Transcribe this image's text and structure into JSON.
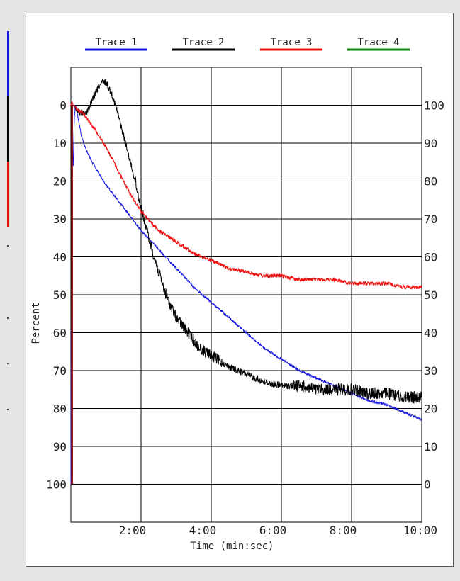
{
  "chart_data": {
    "type": "line",
    "title": "",
    "xlabel": "Time (min:sec)",
    "ylabel": "Percent",
    "xlim": [
      0,
      600
    ],
    "ylim_left": [
      110,
      -10
    ],
    "ylim_right": [
      -10,
      110
    ],
    "x_ticks": [
      120,
      240,
      360,
      480,
      600
    ],
    "x_tick_labels": [
      "2:00",
      "4:00",
      "6:00",
      "8:00",
      "10:00"
    ],
    "y_ticks_left": [
      0,
      10,
      20,
      30,
      40,
      50,
      60,
      70,
      80,
      90,
      100
    ],
    "y_tick_labels_left": [
      "0",
      "10",
      "20",
      "30",
      "40",
      "50",
      "60",
      "70",
      "80",
      "90",
      "100"
    ],
    "y_ticks_right": [
      100,
      90,
      80,
      70,
      60,
      50,
      40,
      30,
      20,
      10,
      0
    ],
    "y_tick_labels_right": [
      "100",
      "90",
      "80",
      "70",
      "60",
      "50",
      "40",
      "30",
      "20",
      "10",
      "0"
    ],
    "grid": true,
    "legend_position": "top",
    "series": [
      {
        "name": "Trace 1",
        "color": "#1515e0",
        "x": [
          0,
          2,
          4,
          6,
          8,
          12,
          18,
          24,
          36,
          48,
          60,
          90,
          120,
          150,
          180,
          210,
          240,
          270,
          300,
          330,
          360,
          390,
          420,
          450,
          480,
          510,
          540,
          570,
          600
        ],
        "y": [
          100,
          10,
          16,
          3,
          0,
          3,
          8,
          11,
          15,
          18,
          21,
          27,
          33,
          38,
          43,
          48,
          52,
          56,
          60,
          64,
          67,
          70,
          72,
          74,
          76,
          78,
          79,
          81,
          83
        ]
      },
      {
        "name": "Trace 2",
        "color": "#000000",
        "x": [
          0,
          4,
          8,
          14,
          20,
          26,
          30,
          36,
          42,
          48,
          54,
          60,
          70,
          80,
          90,
          100,
          110,
          120,
          135,
          150,
          165,
          180,
          200,
          220,
          240,
          270,
          300,
          330,
          360,
          390,
          420,
          450,
          480,
          510,
          540,
          570,
          600
        ],
        "y": [
          0,
          0,
          1,
          2,
          2,
          2,
          1,
          -1,
          -3,
          -5,
          -6,
          -6,
          -3,
          2,
          8,
          14,
          20,
          27,
          36,
          44,
          51,
          56,
          60,
          64,
          66,
          69,
          71,
          73,
          74,
          74,
          75,
          75,
          75,
          76,
          76,
          77,
          77
        ]
      },
      {
        "name": "Trace 3",
        "color": "#ee1111",
        "x": [
          0,
          2,
          4,
          6,
          10,
          20,
          30,
          40,
          60,
          80,
          100,
          120,
          150,
          180,
          210,
          240,
          270,
          300,
          330,
          360,
          390,
          420,
          450,
          480,
          510,
          540,
          570,
          600
        ],
        "y": [
          0,
          -1,
          0,
          0,
          1,
          2,
          4,
          6,
          11,
          17,
          23,
          28,
          33,
          36,
          39,
          41,
          43,
          44,
          45,
          45,
          46,
          46,
          46,
          47,
          47,
          47,
          48,
          48
        ]
      },
      {
        "name": "Trace 4",
        "color": "#118811",
        "x": [],
        "y": []
      }
    ]
  }
}
